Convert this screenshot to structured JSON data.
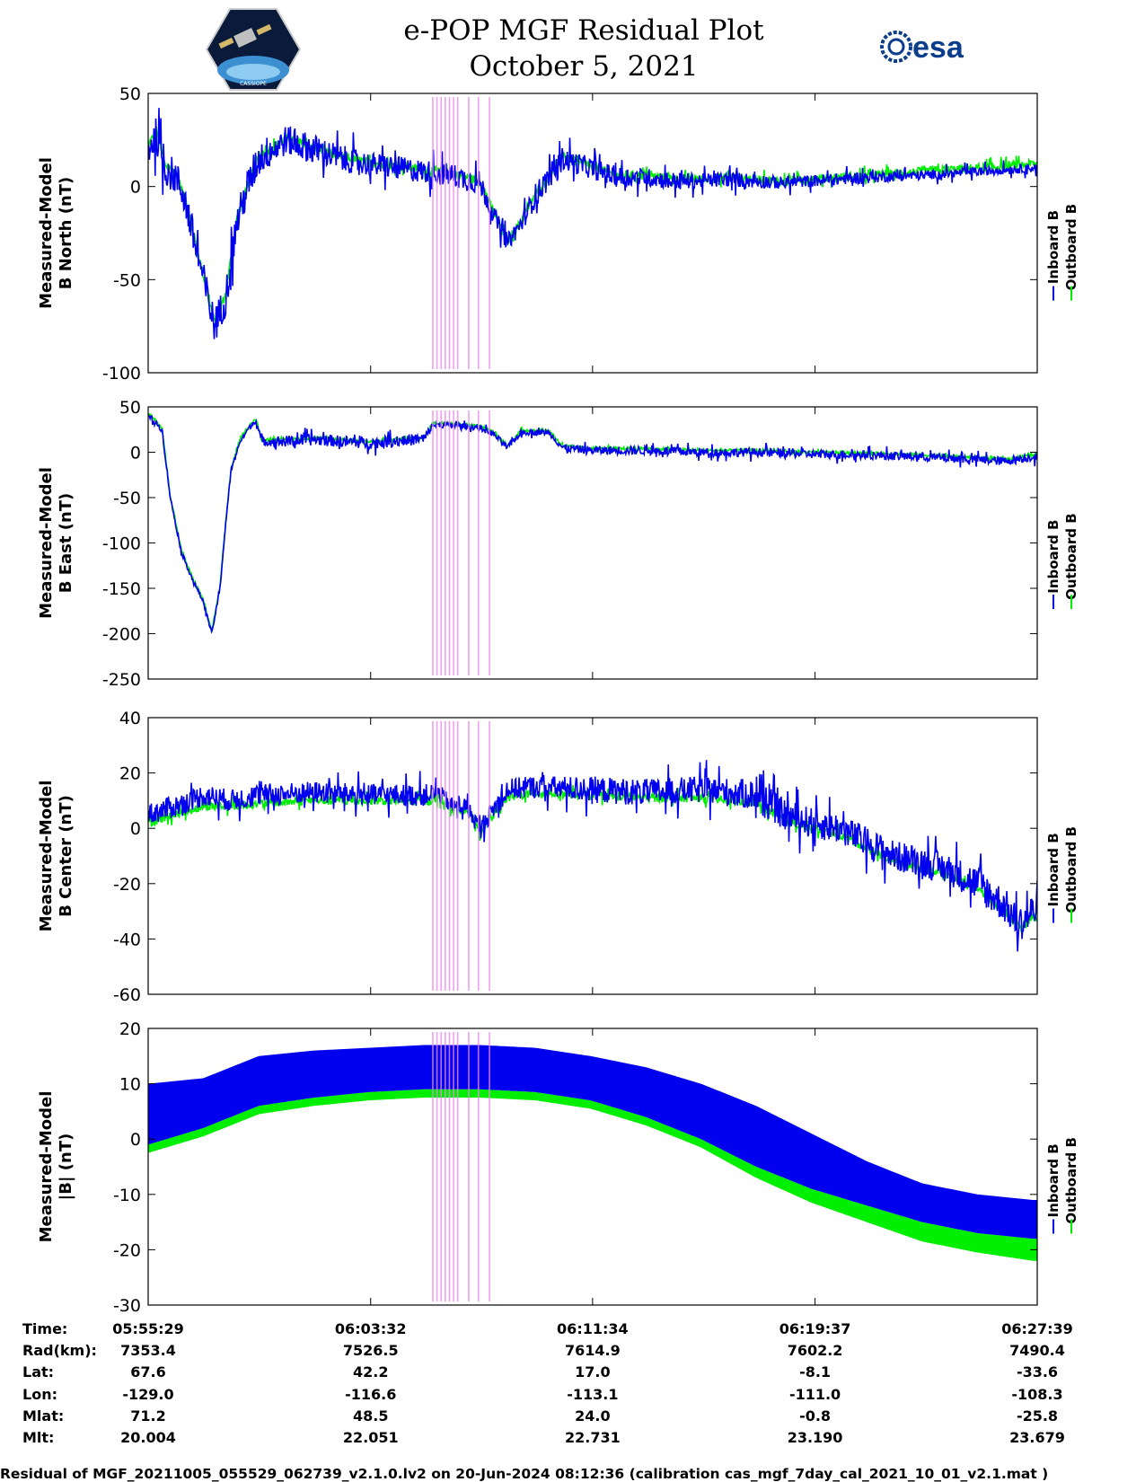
{
  "title": {
    "line1": "e-POP MGF Residual Plot",
    "line2": "October 5, 2021"
  },
  "logos": {
    "left_icon": "cassiope-satellite-logo",
    "right_text": "esa"
  },
  "legend": {
    "inboard": "Inboard B",
    "outboard": "Outboard B"
  },
  "colors": {
    "inboard": "#0000ee",
    "outboard": "#00ee00",
    "marker": "#ee88ee"
  },
  "chart_data": [
    {
      "type": "line",
      "id": "north",
      "ylabel": [
        "Measured-Model",
        "B North (nT)"
      ],
      "ylim": [
        -100,
        50
      ],
      "yticks": [
        -100,
        -50,
        0,
        50
      ],
      "series": [
        {
          "name": "Inboard B",
          "x": [
            0,
            0.3,
            0.6,
            1,
            1.3,
            1.6,
            2,
            2.4,
            2.8,
            3.2,
            3.6,
            4,
            5,
            6,
            7,
            8,
            9,
            10,
            11,
            12,
            12.5,
            13,
            13.5,
            14,
            14.5,
            15,
            16,
            17,
            18,
            19,
            20,
            21,
            22,
            23,
            24,
            26,
            28,
            30,
            32
          ],
          "y": [
            20,
            28,
            10,
            5,
            -5,
            -25,
            -50,
            -75,
            -60,
            -20,
            0,
            15,
            25,
            20,
            15,
            12,
            10,
            8,
            6,
            2,
            -15,
            -30,
            -20,
            -5,
            5,
            15,
            10,
            5,
            5,
            3,
            3,
            4,
            3,
            2,
            3,
            5,
            6,
            8,
            10
          ],
          "noise": [
            12,
            12,
            12,
            12,
            12,
            12,
            12,
            12,
            12,
            12,
            12,
            12,
            10,
            10,
            9,
            8,
            8,
            8,
            8,
            8,
            6,
            6,
            6,
            8,
            8,
            8,
            7,
            7,
            6,
            6,
            5,
            5,
            5,
            4,
            4,
            4,
            3,
            3,
            3
          ]
        },
        {
          "name": "Outboard B",
          "x": [
            0,
            0.3,
            0.6,
            1,
            1.3,
            1.6,
            2,
            2.4,
            2.8,
            3.2,
            3.6,
            4,
            5,
            6,
            7,
            8,
            9,
            10,
            11,
            12,
            12.5,
            13,
            13.5,
            14,
            14.5,
            15,
            16,
            17,
            18,
            19,
            20,
            21,
            22,
            23,
            24,
            26,
            28,
            30,
            32
          ],
          "y": [
            22,
            30,
            12,
            7,
            -3,
            -23,
            -48,
            -73,
            -58,
            -18,
            2,
            16,
            26,
            21,
            16,
            13,
            11,
            9,
            7,
            3,
            -14,
            -29,
            -19,
            -4,
            6,
            16,
            11,
            6,
            6,
            4,
            4,
            5,
            4,
            3,
            4,
            6,
            8,
            10,
            12
          ],
          "noise": [
            3,
            3,
            3,
            3,
            3,
            3,
            3,
            3,
            3,
            3,
            3,
            3,
            3,
            3,
            3,
            3,
            3,
            3,
            3,
            3,
            3,
            3,
            3,
            3,
            3,
            3,
            3,
            3,
            3,
            3,
            3,
            3,
            3,
            3,
            3,
            3,
            3,
            3,
            3
          ]
        }
      ]
    },
    {
      "type": "line",
      "id": "east",
      "ylabel": [
        "Measured-Model",
        "B East (nT)"
      ],
      "ylim": [
        -250,
        50
      ],
      "yticks": [
        -250,
        -200,
        -150,
        -100,
        -50,
        0,
        50
      ],
      "series": [
        {
          "name": "Inboard B",
          "x": [
            0,
            0.2,
            0.5,
            0.8,
            1.2,
            1.6,
            2.0,
            2.3,
            2.6,
            2.8,
            3.0,
            3.3,
            3.6,
            3.9,
            4.1,
            4.3,
            5,
            6,
            8,
            10,
            10.3,
            11,
            12,
            12.5,
            13,
            13.5,
            14,
            14.5,
            15,
            16,
            18,
            20,
            22,
            24,
            26,
            28,
            30,
            31,
            32
          ],
          "y": [
            40,
            35,
            25,
            -50,
            -110,
            -140,
            -165,
            -200,
            -150,
            -80,
            -20,
            10,
            25,
            35,
            12,
            12,
            12,
            14,
            10,
            15,
            30,
            30,
            27,
            20,
            5,
            22,
            22,
            22,
            5,
            2,
            2,
            0,
            0,
            -2,
            -3,
            -5,
            -8,
            -10,
            -5
          ],
          "noise": [
            4,
            4,
            4,
            3,
            3,
            3,
            3,
            3,
            3,
            3,
            3,
            3,
            3,
            3,
            6,
            6,
            8,
            8,
            8,
            8,
            4,
            4,
            4,
            4,
            4,
            4,
            4,
            4,
            5,
            6,
            6,
            6,
            6,
            6,
            6,
            6,
            6,
            6,
            6
          ]
        },
        {
          "name": "Outboard B",
          "x": [
            0,
            0.2,
            0.5,
            0.8,
            1.2,
            1.6,
            2.0,
            2.3,
            2.6,
            2.8,
            3.0,
            3.3,
            3.6,
            3.9,
            4.1,
            4.3,
            5,
            6,
            8,
            10,
            10.3,
            11,
            12,
            12.5,
            13,
            13.5,
            14,
            14.5,
            15,
            16,
            18,
            20,
            22,
            24,
            26,
            28,
            30,
            31,
            32
          ],
          "y": [
            42,
            37,
            27,
            -48,
            -108,
            -138,
            -163,
            -198,
            -148,
            -78,
            -18,
            12,
            27,
            37,
            14,
            14,
            14,
            16,
            12,
            17,
            32,
            32,
            29,
            22,
            7,
            24,
            24,
            24,
            7,
            4,
            4,
            2,
            2,
            0,
            -1,
            -3,
            -6,
            -8,
            -3
          ],
          "noise": [
            2,
            2,
            2,
            2,
            2,
            2,
            2,
            2,
            2,
            2,
            2,
            2,
            2,
            2,
            2,
            2,
            2,
            2,
            2,
            2,
            2,
            2,
            2,
            2,
            2,
            2,
            2,
            2,
            2,
            2,
            2,
            2,
            2,
            2,
            2,
            2,
            2,
            2,
            2
          ]
        }
      ]
    },
    {
      "type": "line",
      "id": "center",
      "ylabel": [
        "Measured-Model",
        "B Center (nT)"
      ],
      "ylim": [
        -60,
        40
      ],
      "yticks": [
        -60,
        -40,
        -20,
        0,
        20,
        40
      ],
      "series": [
        {
          "name": "Inboard B",
          "x": [
            0,
            1,
            2,
            3,
            4,
            6,
            8,
            10,
            10.5,
            11,
            11.5,
            12,
            13,
            14,
            16,
            18,
            20,
            22,
            23,
            24,
            25,
            26,
            27,
            28,
            29,
            30,
            31,
            31.5,
            32
          ],
          "y": [
            5,
            8,
            12,
            10,
            12,
            13,
            12,
            12,
            13,
            8,
            8,
            0,
            14,
            15,
            14,
            13,
            14,
            12,
            5,
            2,
            0,
            -5,
            -10,
            -12,
            -15,
            -20,
            -28,
            -35,
            -30
          ],
          "noise": [
            5,
            5,
            5,
            5,
            5,
            5,
            5,
            5,
            4,
            4,
            4,
            4,
            5,
            5,
            6,
            6,
            6,
            7,
            7,
            7,
            7,
            7,
            7,
            7,
            7,
            8,
            8,
            8,
            8
          ]
        },
        {
          "name": "Outboard B",
          "x": [
            0,
            1,
            2,
            3,
            4,
            6,
            8,
            10,
            10.5,
            11,
            11.5,
            12,
            13,
            14,
            16,
            18,
            20,
            22,
            23,
            24,
            25,
            26,
            27,
            28,
            29,
            30,
            31,
            31.5,
            32
          ],
          "y": [
            2,
            5,
            8,
            8,
            9,
            10,
            10,
            10,
            11,
            7,
            7,
            -1,
            11,
            13,
            12,
            11,
            11,
            9,
            3,
            0,
            -2,
            -7,
            -12,
            -14,
            -17,
            -22,
            -30,
            -36,
            -32
          ],
          "noise": [
            2,
            2,
            2,
            2,
            2,
            2,
            2,
            2,
            2,
            2,
            2,
            2,
            2,
            2,
            2,
            2,
            2,
            2,
            2,
            2,
            2,
            2,
            2,
            2,
            2,
            2,
            2,
            2,
            2
          ]
        }
      ]
    },
    {
      "type": "area",
      "id": "total",
      "ylabel": [
        "Measured-Model",
        "|B| (nT)"
      ],
      "ylim": [
        -30,
        20
      ],
      "yticks": [
        -30,
        -20,
        -10,
        0,
        10,
        20
      ],
      "series": [
        {
          "name": "Inboard B",
          "x": [
            0,
            2,
            4,
            6,
            8,
            10,
            12,
            14,
            16,
            18,
            20,
            22,
            24,
            26,
            28,
            30,
            32
          ],
          "upper": [
            10,
            11,
            15,
            16,
            16.5,
            17,
            17,
            16.5,
            15,
            13,
            10,
            6,
            1,
            -4,
            -8,
            -10,
            -11
          ],
          "lower": [
            -1,
            2,
            6,
            7.5,
            8.5,
            9,
            9,
            8.5,
            7,
            4,
            0,
            -5,
            -9,
            -12,
            -15,
            -17,
            -18
          ]
        },
        {
          "name": "Outboard B",
          "x": [
            0,
            2,
            4,
            6,
            8,
            10,
            12,
            14,
            16,
            18,
            20,
            22,
            24,
            26,
            28,
            30,
            32
          ],
          "upper": [
            -1,
            2,
            6,
            7.5,
            8.5,
            9,
            9,
            8.5,
            7,
            4,
            0,
            -5,
            -9,
            -12,
            -15,
            -17,
            -18
          ],
          "lower": [
            -2.5,
            0.5,
            4.5,
            6,
            7,
            7.5,
            7.5,
            7,
            5.5,
            2.5,
            -1.5,
            -7,
            -11.5,
            -15,
            -18.5,
            -20.5,
            -22
          ]
        }
      ]
    }
  ],
  "x_axis": {
    "range_minutes": [
      0,
      32.17
    ],
    "tick_minutes": [
      0,
      8.05,
      16.08,
      24.13,
      32.17
    ]
  },
  "markers_minutes": [
    10.3,
    10.45,
    10.6,
    10.75,
    10.9,
    11.05,
    11.2,
    11.6,
    11.95,
    12.35
  ],
  "info_table": {
    "labels": [
      "Time:",
      "Rad(km):",
      "Lat:",
      "Lon:",
      "Mlat:",
      "Mlt:"
    ],
    "columns": [
      [
        "05:55:29",
        "7353.4",
        "67.6",
        "-129.0",
        "71.2",
        "20.004"
      ],
      [
        "06:03:32",
        "7526.5",
        "42.2",
        "-116.6",
        "48.5",
        "22.051"
      ],
      [
        "06:11:34",
        "7614.9",
        "17.0",
        "-113.1",
        "24.0",
        "22.731"
      ],
      [
        "06:19:37",
        "7602.2",
        "-8.1",
        "-111.0",
        "-0.8",
        "23.190"
      ],
      [
        "06:27:39",
        "7490.4",
        "-33.6",
        "-108.3",
        "-25.8",
        "23.679"
      ]
    ]
  },
  "footer": "Residual of MGF_20211005_055529_062739_v2.1.0.lv2 on 20-Jun-2024 08:12:36 (calibration cas_mgf_7day_cal_2021_10_01_v2.1.mat )"
}
